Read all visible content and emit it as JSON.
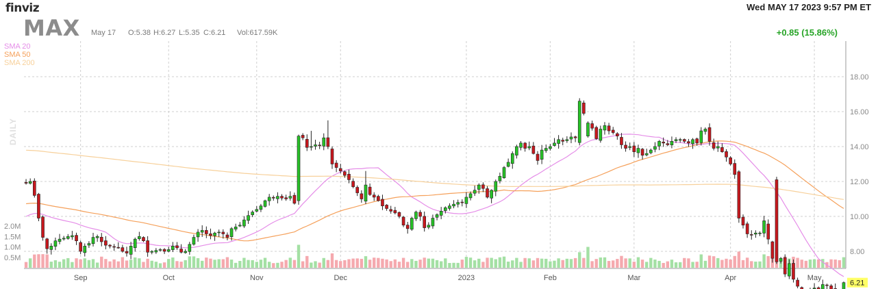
{
  "header": {
    "logo": "finviz",
    "ticker": "MAX",
    "datetime": "Wed MAY 17 2023 9:57 PM ET",
    "ohlc": {
      "date": "May 17",
      "open": "O:5.38",
      "high": "H:6.27",
      "low": "L:5.35",
      "close": "C:6.21",
      "volume": "Vol:617.59K"
    },
    "change": "+0.85 (15.86%)"
  },
  "legend": {
    "sma20": "SMA 20",
    "sma50": "SMA 50",
    "sma200": "SMA 200",
    "daily": "DAILY"
  },
  "colors": {
    "up": "#27c227",
    "down": "#c8181e",
    "sma20": "#e58de8",
    "sma50": "#f5a05a",
    "sma200": "#f7d09a",
    "volume_up": "#a4e0a4",
    "volume_down": "#f5a9ae",
    "grid": "#cfcfcf",
    "last_price_tag": "#ffff66"
  },
  "chart_data": {
    "type": "candlestick",
    "price_axis_ticks": [
      "18.00",
      "16.00",
      "14.00",
      "12.00",
      "10.00",
      "8.00"
    ],
    "price_axis_values": [
      18,
      16,
      14,
      12,
      10,
      8
    ],
    "volume_axis_ticks": [
      "2.0M",
      "1.5M",
      "1.0M",
      "0.5M"
    ],
    "volume_axis_values": [
      2000000,
      1500000,
      1000000,
      500000
    ],
    "last_price_label": "6.21",
    "month_labels": [
      "Sep",
      "Oct",
      "Nov",
      "Dec",
      "2023",
      "Feb",
      "Mar",
      "Apr",
      "May"
    ],
    "month_start_index": [
      13,
      34,
      55,
      75,
      105,
      125,
      145,
      168,
      188
    ],
    "closes": [
      11.9,
      12.0,
      11.2,
      9.9,
      8.8,
      8.15,
      8.3,
      8.6,
      8.7,
      8.75,
      8.85,
      8.9,
      8.6,
      8.0,
      8.3,
      8.45,
      8.8,
      8.85,
      8.55,
      8.35,
      8.3,
      8.25,
      8.2,
      8.0,
      7.9,
      8.3,
      8.7,
      8.85,
      8.6,
      7.95,
      8.0,
      8.05,
      8.1,
      8.0,
      8.1,
      8.3,
      8.2,
      7.95,
      8.0,
      8.4,
      8.8,
      9.1,
      9.2,
      9.0,
      8.9,
      9.05,
      9.1,
      9.0,
      8.8,
      9.3,
      9.4,
      9.5,
      9.8,
      10.05,
      10.25,
      10.4,
      10.6,
      10.9,
      11.1,
      11.05,
      11.15,
      11.05,
      11.0,
      11.15,
      10.75,
      14.6,
      14.5,
      13.95,
      14.0,
      14.1,
      14.05,
      14.5,
      14.0,
      13.0,
      12.8,
      12.6,
      12.35,
      12.1,
      11.7,
      11.35,
      11.0,
      11.8,
      11.25,
      11.1,
      10.9,
      10.6,
      10.45,
      10.3,
      10.2,
      10.0,
      9.5,
      9.3,
      9.9,
      10.25,
      10.0,
      9.35,
      9.5,
      9.9,
      10.1,
      10.3,
      10.5,
      10.6,
      10.7,
      10.8,
      10.8,
      11.1,
      11.3,
      11.5,
      11.8,
      11.6,
      11.1,
      11.5,
      12.0,
      12.3,
      12.8,
      13.1,
      13.6,
      14.0,
      14.2,
      13.9,
      14.0,
      13.6,
      13.2,
      13.8,
      13.9,
      14.0,
      14.2,
      14.4,
      14.3,
      14.4,
      14.55,
      14.5,
      16.6,
      15.9,
      15.35,
      15.05,
      14.45,
      15.0,
      15.2,
      14.9,
      14.8,
      14.6,
      14.1,
      13.9,
      14.0,
      13.7,
      13.9,
      13.5,
      13.6,
      13.8,
      14.0,
      14.3,
      14.2,
      14.1,
      14.3,
      14.4,
      14.4,
      14.3,
      14.2,
      14.4,
      14.2,
      14.9,
      15.0,
      14.3,
      13.9,
      14.0,
      13.7,
      13.4,
      13.0,
      12.4,
      9.9,
      9.5,
      9.0,
      8.95,
      9.05,
      9.05,
      9.75,
      8.7,
      7.6,
      7.4,
      7.6,
      6.7,
      7.3,
      6.4,
      6.0,
      5.6,
      5.55,
      5.8,
      5.9,
      5.8,
      6.1,
      6.05,
      5.8,
      5.5,
      5.35,
      6.21
    ]
  }
}
